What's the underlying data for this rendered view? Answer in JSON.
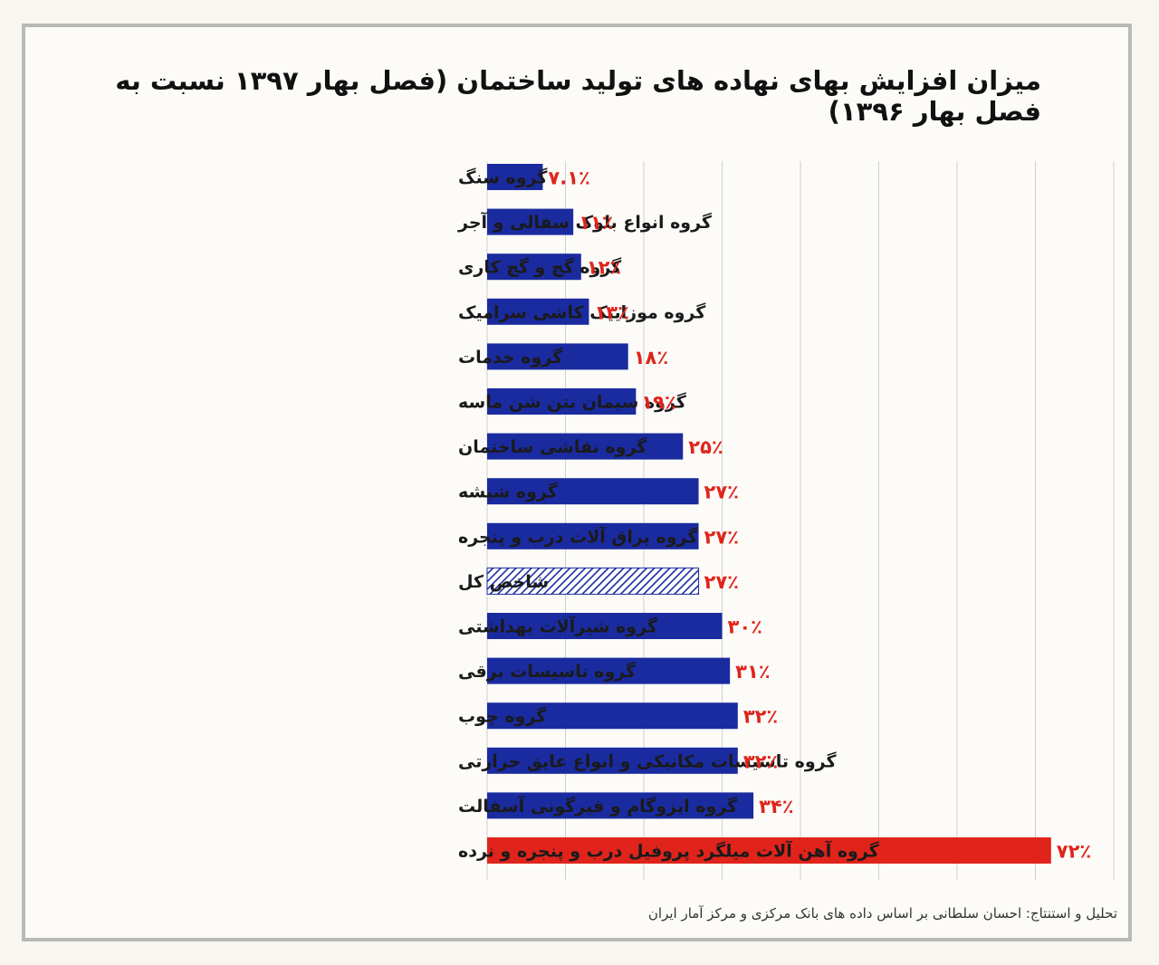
{
  "title": "میزان افزایش بهای نهاده های تولید ساختمان (فصل بهار ۱۳۹۷ نسبت به فصل بهار ۱۳۹۶)",
  "credit": "تحلیل و استنتاج: احسان سلطانی بر اساس داده های بانک مرکزی و مرکز آمار ایران",
  "colors": {
    "bar": "#1a2ba0",
    "highlight": "#e0241b",
    "value": "#e0241b",
    "hatch": "#1a2ba0"
  },
  "chart_data": {
    "type": "bar",
    "orientation": "horizontal",
    "title": "میزان افزایش بهای نهاده های تولید ساختمان (فصل بهار ۱۳۹۷ نسبت به فصل بهار ۱۳۹۶)",
    "xlim": [
      0,
      80
    ],
    "grid": true,
    "categories": [
      "گروه سنگ",
      "گروه انواع بلوک سفالی و آجر",
      "گروه گچ و گچ کاری",
      "گروه موزاییک کاشی سرامیک",
      "گروه خدمات",
      "گروه سیمان بتن شن ماسه",
      "گروه نقاشی ساختمان",
      "گروه شیشه",
      "گروه یراق آلات درب و پنجره",
      "شاخص کل",
      "گروه شیرآلات بهداشتی",
      "گروه تاسیسات برقی",
      "گروه چوب",
      "گروه تاسیسات مکانیکی و انواع عایق حرارتی",
      "گروه ایزوگام و قیرگونی آسفالت",
      "گروه آهن آلات میلگرد پروفیل درب و پنجره و نرده"
    ],
    "values": [
      7.1,
      11,
      12,
      13,
      18,
      19,
      25,
      27,
      27,
      27,
      30,
      31,
      32,
      32,
      34,
      72
    ],
    "value_labels": [
      "۷.۱٪",
      "۱۱٪",
      "۱۲٪",
      "۱۳٪",
      "۱۸٪",
      "۱۹٪",
      "۲۵٪",
      "۲۷٪",
      "۲۷٪",
      "۲۷٪",
      "۳۰٪",
      "۳۱٪",
      "۳۲٪",
      "۳۲٪",
      "۳۴٪",
      "۷۲٪"
    ],
    "bar_styles": [
      "solid",
      "solid",
      "solid",
      "solid",
      "solid",
      "solid",
      "solid",
      "solid",
      "solid",
      "hatched",
      "solid",
      "solid",
      "solid",
      "solid",
      "solid",
      "highlight"
    ]
  }
}
